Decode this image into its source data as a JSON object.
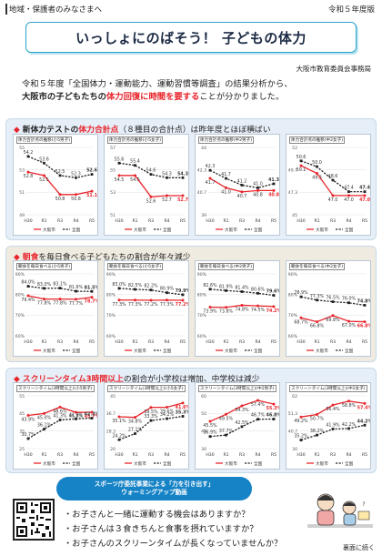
{
  "header": {
    "audience": "地域・保護者のみなさまへ",
    "issue": "令和５年度版"
  },
  "title": "いっしょにのばそう！ 子どもの体力",
  "organization": "大阪市教育委員会事務局",
  "intro": {
    "line1": "令和５年度「全国体力・運動能力、運動習慣等調査」の結果分析から、",
    "line2_a": "大阪市の子どもたちの",
    "line2_b": "体力回復に時間を要する",
    "line2_c": "ことが分かりました。"
  },
  "section1": {
    "heading_pre": "新体力テストの",
    "heading_red": "体力合計点",
    "heading_mid": "（８種目の合計点）",
    "heading_post": "は昨年度とほぼ横ばい"
  },
  "section2": {
    "heading_red": "朝食",
    "heading_post": "を毎日食べる子どもたちの割合が年々減少"
  },
  "section3": {
    "heading_red": "スクリーンタイム3時間以上",
    "heading_post": "の割合が小学校は増加、中学校は減少"
  },
  "legend": {
    "osaka": "大阪市",
    "national": "全国"
  },
  "chart_data": [
    {
      "type": "line",
      "title": "体力合計点の推移(小5男子)",
      "categories": [
        "H30",
        "R1",
        "R3",
        "R4",
        "R5"
      ],
      "series": [
        {
          "name": "大阪市",
          "values": [
            52.8,
            52.5,
            50.8,
            50.8,
            51.1
          ]
        },
        {
          "name": "全国",
          "values": [
            54.2,
            53.6,
            52.5,
            52.3,
            52.6
          ]
        }
      ],
      "ylim": [
        49,
        55
      ]
    },
    {
      "type": "line",
      "title": "体力合計点の推移(小5女子)",
      "categories": [
        "H30",
        "R1",
        "R3",
        "R4",
        "R5"
      ],
      "series": [
        {
          "name": "大阪市",
          "values": [
            54.5,
            54.5,
            52.6,
            52.7,
            52.7
          ]
        },
        {
          "name": "全国",
          "values": [
            55.6,
            55.4,
            54.6,
            54.3,
            54.3
          ]
        }
      ],
      "ylim": [
        51,
        57
      ]
    },
    {
      "type": "line",
      "title": "体力合計点の推移(中2男子)",
      "categories": [
        "H30",
        "R1",
        "R3",
        "R4",
        "R5"
      ],
      "series": [
        {
          "name": "大阪市",
          "values": [
            41.7,
            41.0,
            40.7,
            40.8,
            40.8
          ]
        },
        {
          "name": "全国",
          "values": [
            42.3,
            41.7,
            41.2,
            41.0,
            41.3
          ]
        }
      ],
      "ylim": [
        39,
        44
      ]
    },
    {
      "type": "line",
      "title": "体力合計点の推移(中2女子)",
      "categories": [
        "H30",
        "R1",
        "R3",
        "R4",
        "R5"
      ],
      "series": [
        {
          "name": "大阪市",
          "values": [
            50.1,
            49.3,
            47.0,
            47.0,
            47.0
          ]
        },
        {
          "name": "全国",
          "values": [
            50.6,
            50.0,
            48.6,
            47.4,
            47.4
          ]
        }
      ],
      "ylim": [
        45,
        52
      ]
    },
    {
      "type": "line",
      "title": "朝食を毎日食べる(小5男子)",
      "categories": [
        "H30",
        "R1",
        "R3",
        "R4",
        "R5"
      ],
      "series": [
        {
          "name": "大阪市",
          "values": [
            79.4,
            77.8,
            77.8,
            77.7,
            78.7
          ]
        },
        {
          "name": "全国",
          "values": [
            84.0,
            83.0,
            83.1,
            81.6,
            81.5
          ]
        }
      ],
      "ylim": [
        60,
        90
      ]
    },
    {
      "type": "line",
      "title": "朝食を毎日食べる(小5女子)",
      "categories": [
        "H30",
        "R1",
        "R3",
        "R4",
        "R5"
      ],
      "series": [
        {
          "name": "大阪市",
          "values": [
            77.3,
            77.3,
            77.2,
            77.3,
            77.2
          ]
        },
        {
          "name": "全国",
          "values": [
            83.0,
            82.5,
            82.2,
            80.9,
            79.9
          ]
        }
      ],
      "ylim": [
        60,
        90
      ]
    },
    {
      "type": "line",
      "title": "朝食を毎日食べる(中2男子)",
      "categories": [
        "H30",
        "R1",
        "R3",
        "R4",
        "R5"
      ],
      "series": [
        {
          "name": "大阪市",
          "values": [
            73.9,
            73.8,
            74.8,
            74.5,
            74.2
          ]
        },
        {
          "name": "全国",
          "values": [
            82.6,
            81.9,
            81.4,
            80.6,
            79.6
          ]
        }
      ],
      "ylim": [
        60,
        90
      ]
    },
    {
      "type": "line",
      "title": "朝食を毎日食べる(中2女子)",
      "categories": [
        "H30",
        "R1",
        "R3",
        "R4",
        "R5"
      ],
      "series": [
        {
          "name": "大阪市",
          "values": [
            68.7,
            66.8,
            69.8,
            67.0,
            66.8
          ]
        },
        {
          "name": "全国",
          "values": [
            78.9,
            77.3,
            76.5,
            76.0,
            74.8
          ]
        }
      ],
      "ylim": [
        60,
        90
      ]
    },
    {
      "type": "line",
      "title": "スクリーンタイム(3時間以上)(小5男子)",
      "categories": [
        "H30",
        "R1",
        "R3",
        "R4",
        "R5"
      ],
      "series": [
        {
          "name": "大阪市",
          "values": [
            43.9,
            45.0,
            48.6,
            45.6,
            45.7
          ]
        },
        {
          "name": "全国",
          "values": [
            30.7,
            36.1,
            41.3,
            41.9,
            42.3
          ]
        }
      ],
      "ylim": [
        25,
        55
      ]
    },
    {
      "type": "line",
      "title": "スクリーンタイム(3時間以上)(小5女子)",
      "categories": [
        "H30",
        "R1",
        "R3",
        "R4",
        "R5"
      ],
      "series": [
        {
          "name": "大阪市",
          "values": [
            35.1,
            34.8,
            39.5,
            39.6,
            41.6
          ]
        },
        {
          "name": "全国",
          "values": [
            24.2,
            27.1,
            33.3,
            34.2,
            35.3
          ]
        }
      ],
      "ylim": [
        20,
        45
      ]
    },
    {
      "type": "line",
      "title": "スクリーンタイム(3時間以上)(中2男子)",
      "categories": [
        "H30",
        "R1",
        "R3",
        "R4",
        "R5"
      ],
      "series": [
        {
          "name": "大阪市",
          "values": [
            45.5,
            49.5,
            54.3,
            57.4,
            55.3
          ]
        },
        {
          "name": "全国",
          "values": [
            36.9,
            37.7,
            42.5,
            46.7,
            46.8
          ]
        }
      ],
      "ylim": [
        30,
        60
      ]
    },
    {
      "type": "line",
      "title": "スクリーンタイム(3時間以上)(中2女子)",
      "categories": [
        "H30",
        "R1",
        "R3",
        "R4",
        "R5"
      ],
      "series": [
        {
          "name": "大阪市",
          "values": [
            49.2,
            50.7,
            56.4,
            58.8,
            57.4
          ]
        },
        {
          "name": "全国",
          "values": [
            35.2,
            38.2,
            41.9,
            42.2,
            44.2
          ]
        }
      ],
      "ylim": [
        30,
        62
      ]
    }
  ],
  "promo": {
    "line1": "スポーツ庁委託事業による「力を引き出す」",
    "line2": "ウォーミングアップ動画"
  },
  "questions": [
    "・お子さんと一緒に運動する機会はありますか？",
    "・お子さんは３食きちんと食事を摂れていますか？",
    "・お子さんのスクリーンタイムが長くなっていませんか？"
  ],
  "back_note": "裏面に続く",
  "colors": {
    "osaka": "#e8252c",
    "national": "#222222",
    "accent": "#27a3c9",
    "pill": "#1683c7"
  }
}
